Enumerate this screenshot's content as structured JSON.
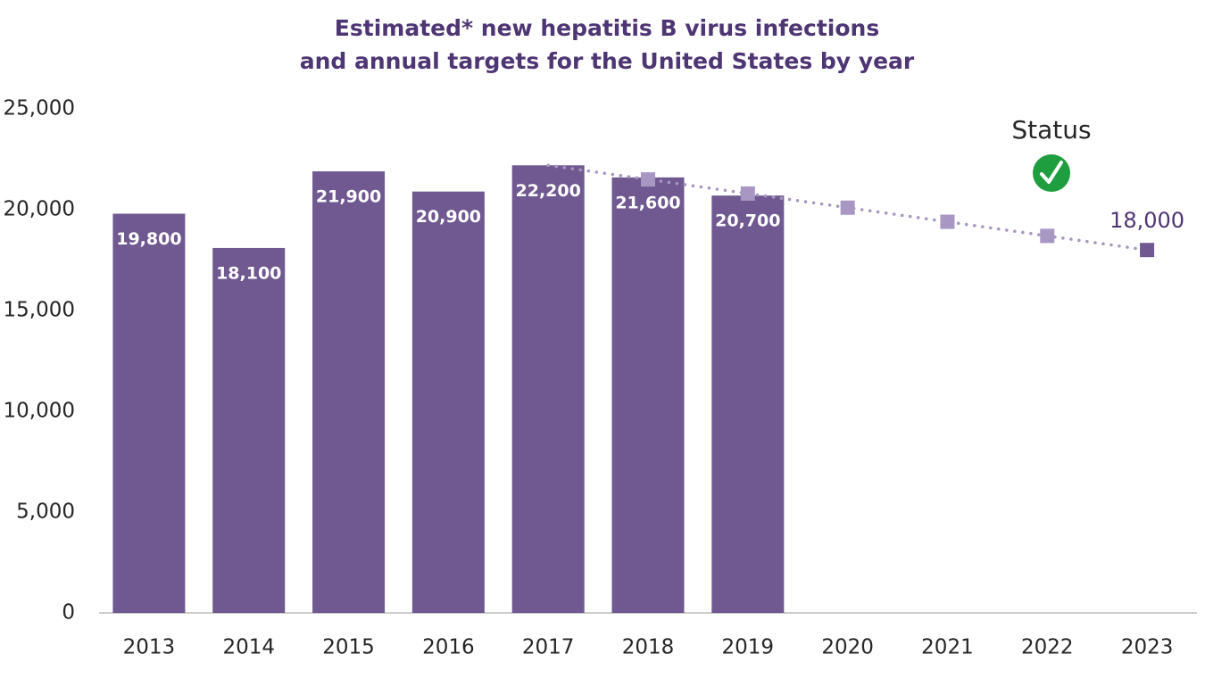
{
  "chart_data": {
    "type": "bar",
    "title": [
      "Estimated* new hepatitis B virus infections",
      "and annual targets for the United States by year"
    ],
    "categories": [
      "2013",
      "2014",
      "2015",
      "2016",
      "2017",
      "2018",
      "2019",
      "2020",
      "2021",
      "2022",
      "2023"
    ],
    "series": [
      {
        "type": "bar",
        "color": "#6f5990",
        "values": [
          19800,
          18100,
          21900,
          20900,
          22200,
          21600,
          20700,
          null,
          null,
          null,
          null
        ],
        "value_labels": [
          "19,800",
          "18,100",
          "21,900",
          "20,900",
          "22,200",
          "21,600",
          "20,700",
          null,
          null,
          null,
          null
        ]
      },
      {
        "type": "line",
        "color": "#a797c2",
        "last_color": "#6f5990",
        "dotted": true,
        "values": [
          null,
          null,
          null,
          null,
          22200,
          21500,
          20800,
          20100,
          19400,
          18700,
          18000
        ],
        "value_labels": [
          null,
          null,
          null,
          null,
          null,
          null,
          null,
          null,
          null,
          null,
          "18,000"
        ]
      }
    ],
    "annotation": "Status",
    "ylim": [
      0,
      25000
    ],
    "yticks": [
      0,
      {
        "value": 5000,
        "label": "5,000"
      },
      {
        "value": 10000,
        "label": "10,000"
      },
      {
        "value": 15000,
        "label": "15,000"
      },
      {
        "value": 20000,
        "label": "20,000"
      },
      {
        "value": 25000,
        "label": "25,000"
      }
    ],
    "grid": false
  }
}
